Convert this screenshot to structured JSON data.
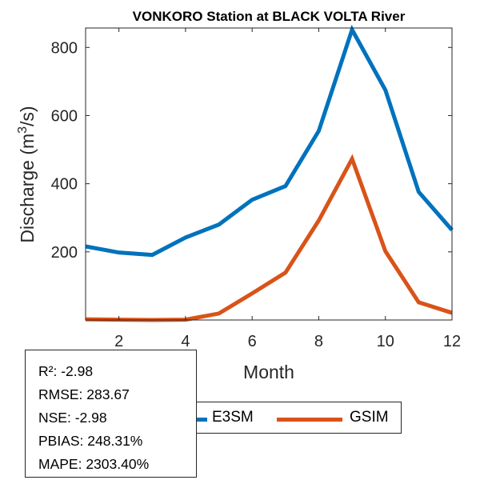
{
  "chart_data": {
    "type": "line",
    "title": "VONKORO  Station at  BLACK VOLTA  River",
    "xlabel": "Month",
    "ylabel": "Discharge (m³/s)",
    "ylabel_parts": {
      "before": "Discharge (m",
      "sup": "3",
      "after": "/s)"
    },
    "xlim": [
      1,
      12
    ],
    "ylim": [
      0,
      857
    ],
    "xticks": [
      2,
      4,
      6,
      8,
      10,
      12
    ],
    "yticks": [
      200,
      400,
      600,
      800
    ],
    "grid": false,
    "legend_position": "bottom-center",
    "x": [
      1,
      2,
      3,
      4,
      5,
      6,
      7,
      8,
      9,
      10,
      11,
      12
    ],
    "series": [
      {
        "name": "E3SM",
        "color": "#0072BD",
        "values": [
          216,
          198,
          191,
          242,
          280,
          353,
          393,
          555,
          852,
          675,
          376,
          264
        ]
      },
      {
        "name": "GSIM",
        "color": "#D95319",
        "values": [
          2,
          1,
          0,
          1,
          19,
          78,
          139,
          292,
          473,
          202,
          52,
          21
        ]
      }
    ]
  },
  "stats": [
    "R²: -2.98",
    "RMSE: 283.67",
    "NSE: -2.98",
    "PBIAS: 248.31%",
    "MAPE: 2303.40%"
  ]
}
